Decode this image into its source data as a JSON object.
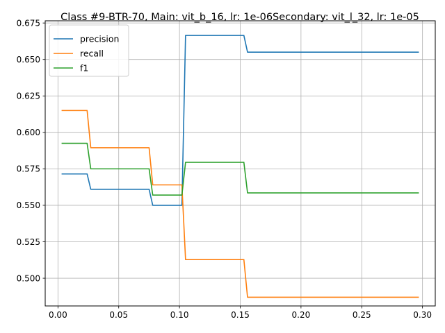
{
  "chart_data": {
    "type": "line",
    "title": "Class #9-BTR-70, Main: vit_b_16, lr: 1e-06Secondary: vit_l_32, lr: 1e-05",
    "xlabel": "",
    "ylabel": "",
    "xlim": [
      -0.0105,
      0.3105
    ],
    "ylim": [
      0.481,
      0.6765
    ],
    "grid": true,
    "legend_position": "top-left",
    "x_ticks": [
      0.0,
      0.05,
      0.1,
      0.15,
      0.2,
      0.25,
      0.3
    ],
    "x_tick_labels": [
      "0.00",
      "0.05",
      "0.10",
      "0.15",
      "0.20",
      "0.25",
      "0.30"
    ],
    "y_ticks": [
      0.5,
      0.525,
      0.55,
      0.575,
      0.6,
      0.625,
      0.65,
      0.675
    ],
    "y_tick_labels": [
      "0.500",
      "0.525",
      "0.550",
      "0.575",
      "0.600",
      "0.625",
      "0.650",
      "0.675"
    ],
    "series": [
      {
        "name": "precision",
        "color": "#1f77b4",
        "x": [
          0.003,
          0.024,
          0.027,
          0.075,
          0.078,
          0.102,
          0.105,
          0.153,
          0.156,
          0.297
        ],
        "y": [
          0.5715,
          0.5715,
          0.561,
          0.561,
          0.55,
          0.55,
          0.6665,
          0.6665,
          0.655,
          0.655
        ]
      },
      {
        "name": "recall",
        "color": "#ff7f0e",
        "x": [
          0.003,
          0.024,
          0.027,
          0.075,
          0.078,
          0.102,
          0.105,
          0.153,
          0.156,
          0.297
        ],
        "y": [
          0.615,
          0.615,
          0.5895,
          0.5895,
          0.564,
          0.564,
          0.5128,
          0.5128,
          0.487,
          0.487
        ]
      },
      {
        "name": "f1",
        "color": "#2ca02c",
        "x": [
          0.003,
          0.024,
          0.027,
          0.075,
          0.078,
          0.102,
          0.105,
          0.153,
          0.156,
          0.297
        ],
        "y": [
          0.5925,
          0.5925,
          0.575,
          0.575,
          0.557,
          0.557,
          0.5795,
          0.5795,
          0.5585,
          0.5585
        ]
      }
    ]
  }
}
